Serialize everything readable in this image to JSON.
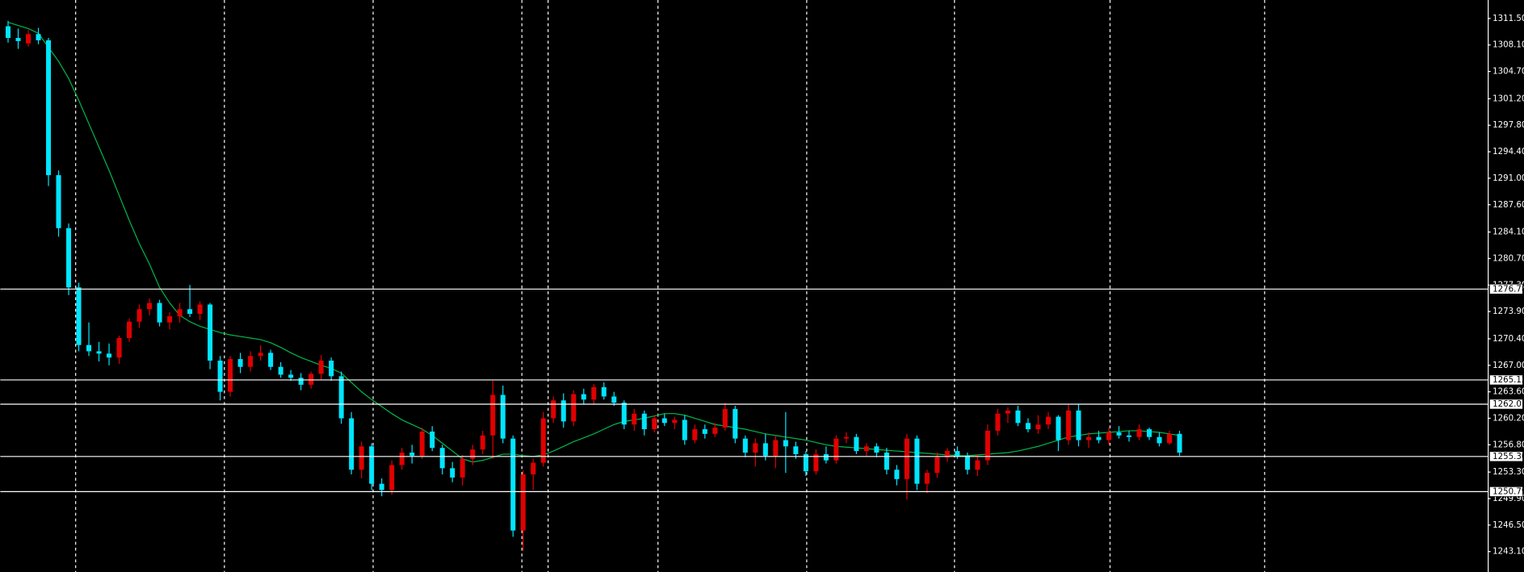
{
  "chart_data": {
    "type": "candlestick",
    "open": [
      1310.5,
      1309.0,
      1308.3,
      1309.5,
      1308.7,
      1291.4,
      1284.6,
      1277.0,
      1269.6,
      1268.8,
      1268.5,
      1268.0,
      1270.5,
      1272.6,
      1274.2,
      1275.0,
      1272.5,
      1273.3,
      1274.2,
      1273.6,
      1274.8,
      1267.6,
      1263.6,
      1267.8,
      1266.8,
      1268.2,
      1268.6,
      1266.8,
      1265.8,
      1265.4,
      1264.5,
      1265.9,
      1267.6,
      1265.6,
      1260.2,
      1253.6,
      1256.6,
      1251.8,
      1251.0,
      1254.2,
      1255.8,
      1255.4,
      1258.5,
      1256.4,
      1253.8,
      1252.6,
      1255.0,
      1256.2,
      1258.0,
      1263.2,
      1257.6,
      1245.8,
      1253.0,
      1254.5,
      1260.2,
      1262.5,
      1259.8,
      1263.3,
      1262.6,
      1264.2,
      1263.0,
      1262.2,
      1259.4,
      1260.8,
      1258.8,
      1260.2,
      1259.6,
      1260.0,
      1257.4,
      1258.8,
      1258.2,
      1259.0,
      1261.4,
      1257.6,
      1255.8,
      1257.0,
      1255.4,
      1257.4,
      1256.6,
      1255.6,
      1253.4,
      1255.6,
      1254.8,
      1257.6,
      1257.8,
      1256.0,
      1256.6,
      1255.8,
      1253.6,
      1252.4,
      1257.6,
      1251.8,
      1253.2,
      1255.2,
      1256.0,
      1255.4,
      1253.6,
      1254.8,
      1258.6,
      1260.8,
      1261.2,
      1259.6,
      1258.8,
      1259.4,
      1260.4,
      1257.4,
      1261.2,
      1257.4,
      1257.8,
      1257.4,
      1258.4,
      1258.0,
      1257.8,
      1258.8,
      1257.8,
      1257.0,
      1258.2
    ],
    "high": [
      1311.2,
      1310.2,
      1310.0,
      1310.3,
      1309.0,
      1292.0,
      1285.2,
      1277.6,
      1272.5,
      1270.0,
      1269.8,
      1270.8,
      1273.0,
      1274.8,
      1275.6,
      1275.4,
      1273.8,
      1275.0,
      1277.3,
      1275.2,
      1275.0,
      1268.2,
      1268.2,
      1268.6,
      1268.8,
      1269.6,
      1269.0,
      1267.4,
      1266.4,
      1266.0,
      1266.2,
      1268.3,
      1268.0,
      1266.2,
      1261.0,
      1257.2,
      1257.0,
      1252.5,
      1254.8,
      1256.4,
      1256.8,
      1259.0,
      1259.2,
      1256.8,
      1254.6,
      1255.5,
      1256.8,
      1258.6,
      1265.0,
      1264.4,
      1258.0,
      1253.5,
      1255.0,
      1261.0,
      1263.0,
      1263.4,
      1263.8,
      1264.0,
      1264.6,
      1264.8,
      1263.6,
      1262.5,
      1261.4,
      1261.2,
      1260.6,
      1260.8,
      1260.4,
      1260.6,
      1259.4,
      1259.4,
      1259.6,
      1262.2,
      1261.8,
      1258.0,
      1257.6,
      1258.2,
      1258.0,
      1261.0,
      1257.2,
      1256.0,
      1256.2,
      1256.6,
      1258.0,
      1258.4,
      1258.2,
      1257.0,
      1257.0,
      1256.4,
      1254.2,
      1258.2,
      1258.0,
      1253.6,
      1255.8,
      1256.4,
      1256.6,
      1255.8,
      1255.6,
      1259.4,
      1261.4,
      1261.6,
      1261.8,
      1260.2,
      1260.6,
      1261.0,
      1260.6,
      1262.0,
      1262.0,
      1258.4,
      1258.6,
      1259.0,
      1259.2,
      1258.6,
      1259.4,
      1259.0,
      1258.4,
      1258.6,
      1258.6
    ],
    "low": [
      1308.4,
      1307.6,
      1307.9,
      1308.2,
      1290.0,
      1283.5,
      1276.0,
      1268.8,
      1268.2,
      1267.5,
      1267.0,
      1267.2,
      1270.0,
      1271.8,
      1273.4,
      1272.0,
      1271.6,
      1272.5,
      1273.2,
      1272.8,
      1266.5,
      1262.5,
      1263.0,
      1266.0,
      1266.2,
      1267.6,
      1266.4,
      1265.4,
      1265.0,
      1263.8,
      1264.0,
      1265.2,
      1265.0,
      1259.5,
      1253.0,
      1252.5,
      1251.0,
      1250.2,
      1250.4,
      1253.6,
      1254.4,
      1255.0,
      1256.0,
      1253.0,
      1252.0,
      1251.6,
      1254.2,
      1255.6,
      1255.0,
      1257.0,
      1245.0,
      1243.2,
      1251.0,
      1254.0,
      1259.6,
      1259.0,
      1259.2,
      1262.0,
      1262.0,
      1262.6,
      1261.8,
      1258.8,
      1258.6,
      1258.0,
      1258.4,
      1259.2,
      1258.8,
      1256.8,
      1257.0,
      1257.6,
      1257.8,
      1258.6,
      1257.0,
      1255.2,
      1254.0,
      1254.8,
      1253.8,
      1253.2,
      1255.0,
      1252.8,
      1253.0,
      1254.4,
      1254.4,
      1257.0,
      1255.6,
      1255.4,
      1255.2,
      1253.0,
      1251.6,
      1249.8,
      1251.0,
      1250.6,
      1252.6,
      1254.6,
      1255.0,
      1253.0,
      1252.8,
      1254.2,
      1258.0,
      1259.6,
      1259.2,
      1258.4,
      1258.2,
      1258.8,
      1256.0,
      1256.8,
      1256.6,
      1256.4,
      1257.0,
      1256.8,
      1257.6,
      1257.2,
      1257.4,
      1257.4,
      1256.6,
      1256.8,
      1255.4
    ],
    "close": [
      1309.0,
      1308.6,
      1309.5,
      1308.7,
      1291.4,
      1284.6,
      1277.0,
      1269.6,
      1268.8,
      1268.5,
      1268.0,
      1270.5,
      1272.6,
      1274.2,
      1275.0,
      1272.5,
      1273.3,
      1274.2,
      1273.6,
      1274.8,
      1267.6,
      1263.6,
      1267.8,
      1266.8,
      1268.2,
      1268.6,
      1266.8,
      1265.8,
      1265.4,
      1264.5,
      1265.9,
      1267.6,
      1265.6,
      1260.2,
      1253.6,
      1256.6,
      1251.8,
      1251.0,
      1254.2,
      1255.8,
      1255.4,
      1258.5,
      1256.4,
      1253.8,
      1252.6,
      1255.0,
      1256.2,
      1258.0,
      1263.2,
      1257.6,
      1245.8,
      1253.0,
      1254.5,
      1260.2,
      1262.5,
      1259.8,
      1263.3,
      1262.6,
      1264.2,
      1263.0,
      1262.2,
      1259.4,
      1260.8,
      1258.8,
      1260.2,
      1259.6,
      1260.0,
      1257.4,
      1258.8,
      1258.2,
      1259.0,
      1261.4,
      1257.6,
      1255.8,
      1257.0,
      1255.4,
      1257.4,
      1256.6,
      1255.6,
      1253.4,
      1255.6,
      1254.8,
      1257.6,
      1257.8,
      1256.0,
      1256.6,
      1255.8,
      1253.6,
      1252.4,
      1257.6,
      1251.8,
      1253.2,
      1255.2,
      1256.0,
      1255.4,
      1253.6,
      1254.8,
      1258.6,
      1260.8,
      1261.2,
      1259.6,
      1258.8,
      1259.4,
      1260.4,
      1257.4,
      1261.2,
      1257.4,
      1257.8,
      1257.4,
      1258.4,
      1258.0,
      1257.8,
      1258.8,
      1257.8,
      1257.0,
      1258.2,
      1255.8
    ],
    "up_color": "#e00000",
    "down_color": "#00e5ff",
    "moving_average": {
      "color": "#00b84a",
      "values": [
        1311.0,
        1310.6,
        1310.2,
        1309.6,
        1307.8,
        1306.0,
        1303.8,
        1301.0,
        1298.0,
        1295.0,
        1292.0,
        1288.8,
        1285.6,
        1282.6,
        1280.0,
        1277.0,
        1275.0,
        1273.4,
        1272.6,
        1272.0,
        1271.6,
        1271.2,
        1270.9,
        1270.7,
        1270.5,
        1270.3,
        1269.9,
        1269.3,
        1268.6,
        1268.0,
        1267.5,
        1267.0,
        1266.6,
        1266.0,
        1264.8,
        1263.6,
        1262.6,
        1261.7,
        1260.8,
        1260.0,
        1259.4,
        1258.8,
        1258.0,
        1257.0,
        1256.0,
        1255.0,
        1254.6,
        1254.8,
        1255.2,
        1255.6,
        1255.6,
        1255.4,
        1255.3,
        1255.5,
        1256.0,
        1256.6,
        1257.2,
        1257.7,
        1258.2,
        1258.8,
        1259.4,
        1259.8,
        1260.0,
        1260.2,
        1260.5,
        1260.8,
        1260.8,
        1260.6,
        1260.2,
        1259.8,
        1259.4,
        1259.2,
        1259.0,
        1258.8,
        1258.5,
        1258.2,
        1258.0,
        1257.8,
        1257.6,
        1257.4,
        1257.1,
        1256.8,
        1256.6,
        1256.5,
        1256.4,
        1256.3,
        1256.2,
        1256.1,
        1256.0,
        1255.9,
        1255.8,
        1255.7,
        1255.6,
        1255.5,
        1255.4,
        1255.4,
        1255.5,
        1255.6,
        1255.7,
        1255.8,
        1256.0,
        1256.3,
        1256.6,
        1257.0,
        1257.4,
        1257.8,
        1258.0,
        1258.2,
        1258.3,
        1258.4,
        1258.5,
        1258.6,
        1258.6,
        1258.5,
        1258.4,
        1258.2,
        1258.0
      ]
    },
    "levels": [
      1276.78,
      1265.12,
      1262.01,
      {
        "value": 1255.3,
        "label": "1255.30"
      },
      1250.79
    ],
    "level_color": "#ffffff",
    "ylim": [
      1240.48,
      1313.87
    ],
    "yticks": [
      {
        "value": 1311.5,
        "label": "1311.50"
      },
      {
        "value": 1308.1,
        "label": "1308.10"
      },
      {
        "value": 1304.7,
        "label": "1304.70"
      },
      {
        "value": 1301.2,
        "label": "1301.20"
      },
      {
        "value": 1297.8,
        "label": "1297.80"
      },
      {
        "value": 1294.4,
        "label": "1294.40"
      },
      {
        "value": 1291.0,
        "label": "1291.00"
      },
      {
        "value": 1287.6,
        "label": "1287.60"
      },
      {
        "value": 1284.1,
        "label": "1284.10"
      },
      {
        "value": 1280.7,
        "label": "1280.70"
      },
      {
        "value": 1277.3,
        "label": "1277.30"
      },
      {
        "value": 1273.9,
        "label": "1273.90"
      },
      {
        "value": 1270.4,
        "label": "1270.40"
      },
      {
        "value": 1267.0,
        "label": "1267.00"
      },
      {
        "value": 1263.6,
        "label": "1263.60"
      },
      {
        "value": 1260.2,
        "label": "1260.20"
      },
      {
        "value": 1256.8,
        "label": "1256.80"
      },
      {
        "value": 1253.3,
        "label": "1253.30"
      },
      {
        "value": 1249.9,
        "label": "1249.90"
      },
      {
        "value": 1246.5,
        "label": "1246.50"
      },
      {
        "value": 1243.1,
        "label": "1243.10"
      }
    ],
    "grid": true
  }
}
